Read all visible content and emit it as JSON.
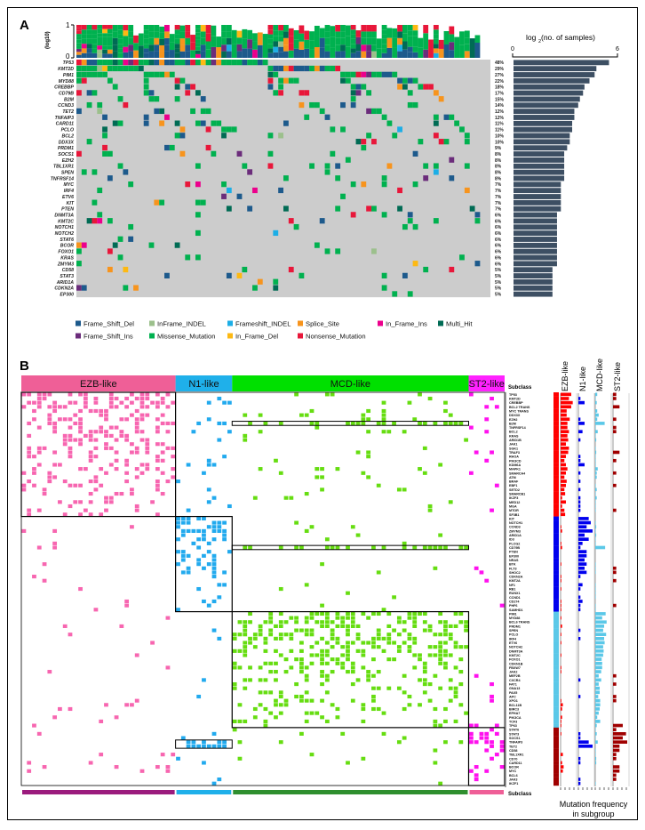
{
  "chart_data": [
    {
      "type": "heatmap",
      "panel_label": "A",
      "top_axis": {
        "label": "(log10)",
        "ticks": [
          "1",
          "0"
        ]
      },
      "right_axis": {
        "title_main": "log",
        "title_sub": "2",
        "title_rest": "(no. of samples)",
        "ticks": [
          "0",
          "6"
        ],
        "xlim": [
          0,
          6
        ]
      },
      "genes": [
        "TP53",
        "KMT2D",
        "PIM1",
        "MYD88",
        "CREBBP",
        "CD79B",
        "B2M",
        "CCND3",
        "TET2",
        "TNFAIP3",
        "CARD11",
        "PCLO",
        "BCL2",
        "DDX3X",
        "PRDM1",
        "SOCS1",
        "EZH2",
        "TBL1XR1",
        "SPEN",
        "TNFRSF14",
        "MYC",
        "IRF4",
        "ETV6",
        "KIT",
        "PTEN",
        "DNMT3A",
        "KMT2C",
        "NOTCH1",
        "NOTCH2",
        "STAT6",
        "BCOR",
        "FOXO1",
        "KRAS",
        "ZMYM3",
        "CD58",
        "STAT3",
        "ARID1A",
        "CDKN2A",
        "EP300"
      ],
      "mutation_percent": [
        48,
        29,
        27,
        22,
        18,
        17,
        15,
        14,
        12,
        12,
        11,
        11,
        10,
        10,
        9,
        8,
        8,
        8,
        8,
        8,
        7,
        7,
        7,
        7,
        7,
        6,
        6,
        6,
        6,
        6,
        6,
        6,
        6,
        6,
        5,
        5,
        5,
        5,
        5
      ],
      "legend": [
        {
          "label": "Frame_Shift_Del",
          "color": "#1d5a8c"
        },
        {
          "label": "InFrame_INDEL",
          "color": "#9cc08c"
        },
        {
          "label": "Frameshift_INDEL",
          "color": "#1caee6"
        },
        {
          "label": "Splice_Site",
          "color": "#f7941d"
        },
        {
          "label": "In_Frame_Ins",
          "color": "#ec008c"
        },
        {
          "label": "Multi_Hit",
          "color": "#006b54"
        },
        {
          "label": "Frame_Shift_Ins",
          "color": "#6b2c7b"
        },
        {
          "label": "Missense_Mutation",
          "color": "#00b14f"
        },
        {
          "label": "In_Frame_Del",
          "color": "#fdb913"
        },
        {
          "label": "Nonsense_Mutation",
          "color": "#e8173a"
        }
      ],
      "cell_background": "#cccccc",
      "bar_color": "#3d4f63"
    },
    {
      "type": "heatmap",
      "panel_label": "B",
      "subclass_label": "Subclass",
      "caption": [
        "Mutation frequency",
        "in subgroup"
      ],
      "subclasses": [
        {
          "name": "EZB-like",
          "color": "#ef5f97",
          "cell_color": "#f766b0",
          "freq_color": "#ff0000",
          "bottom_color": "#9b1b7d",
          "genes": [
            "TP53",
            "KMT2D",
            "CREBBP",
            "BCL2 TRANS",
            "MYC TRANS",
            "DDX3X",
            "EZH2",
            "B2M",
            "TNFRSF14",
            "BCL2",
            "KRAS",
            "ARID1B",
            "JAK1",
            "SGK1",
            "TRAF3",
            "RHOA",
            "PIK3CD",
            "KDM6A",
            "MAPK1",
            "SMARCA4",
            "ATM",
            "BRAF",
            "EBF1",
            "SETD2",
            "SMARCB1",
            "IKZF3",
            "MED12",
            "MGA",
            "MTOR",
            "SF3B1"
          ]
        },
        {
          "name": "N1-like",
          "color": "#1fb0ea",
          "cell_color": "#22aaee",
          "freq_color": "#0000ee",
          "bottom_color": "#1fb0ea",
          "genes": [
            "KIT",
            "NOTCH1",
            "CCND3",
            "ZMYM3",
            "ARID1A",
            "ID3",
            "PLCG2",
            "CD79B",
            "PTEN",
            "EP300",
            "NRAS",
            "BTK",
            "FLT3",
            "SHOC2",
            "CDKN2A",
            "KMT2A",
            "NF1",
            "RB1",
            "RUNX1",
            "CCND1",
            "CD274",
            "PHF6",
            "SAMHD1"
          ]
        },
        {
          "name": "MCD-like",
          "color": "#00e000",
          "cell_color": "#66dd11",
          "freq_color": "#5bc8e8",
          "bottom_color": "#2f8f2f",
          "genes": [
            "PIM1",
            "MYD88",
            "BCL6 TRANS",
            "PRDM1",
            "SPEN",
            "PCLO",
            "IRF4",
            "ETV6",
            "NOTCH2",
            "DNMT3A",
            "KMT2C",
            "FOXO1",
            "CDKN1B",
            "FBXW7",
            "JAK2",
            "MEF2B",
            "CXCR4",
            "FAT1",
            "GNA13",
            "PAX5",
            "APC",
            "XPO1",
            "BCL11B",
            "BIRC3",
            "EPHA7",
            "PIK3CA",
            "TCF3",
            "TP63"
          ]
        },
        {
          "name": "ST2-like",
          "color": "#ff22ff",
          "cell_color": "#ff11ee",
          "freq_color": "#a00000",
          "bottom_color": "#ef5f97",
          "genes": [
            "STAT6",
            "STAT3",
            "SOCS1",
            "TNFAIP3",
            "TET2",
            "CD58",
            "TBL1XR1",
            "CD70",
            "CARD11",
            "BCOR",
            "MYC",
            "BCL6",
            "JAK3",
            "IKZF1"
          ]
        }
      ]
    }
  ]
}
